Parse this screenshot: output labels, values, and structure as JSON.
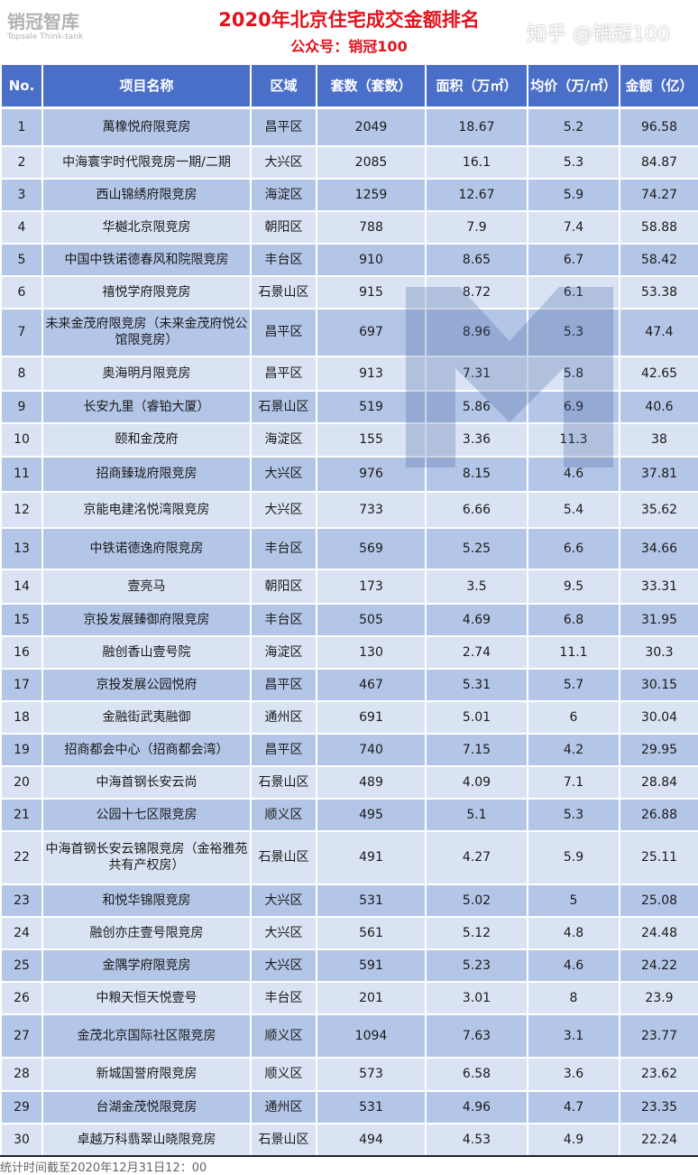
{
  "title": "2020年北京住宅成交金额排名",
  "subtitle": "公众号：销冠100",
  "columns": [
    "No.",
    "项目名称",
    "区域",
    "套数（套数）",
    "面积（万㎡）",
    "均价（万/㎡）",
    "金额（亿）"
  ],
  "rows": [
    [
      "1",
      "萬橡悦府限竞房",
      "昌平区",
      "2049",
      "18.67",
      "5.2",
      "96.58"
    ],
    [
      "2",
      "中海寰宇时代限竞房一期/二期",
      "大兴区",
      "2085",
      "16.1",
      "5.3",
      "84.87"
    ],
    [
      "3",
      "西山锦绣府限竞房",
      "海淀区",
      "1259",
      "12.67",
      "5.9",
      "74.27"
    ],
    [
      "4",
      "华樾北京限竞房",
      "朝阳区",
      "788",
      "7.9",
      "7.4",
      "58.88"
    ],
    [
      "5",
      "中国中铁诺德春风和院限竞房",
      "丰台区",
      "910",
      "8.65",
      "6.7",
      "58.42"
    ],
    [
      "6",
      "禧悦学府限竞房",
      "石景山区",
      "915",
      "8.72",
      "6.1",
      "53.38"
    ],
    [
      "7",
      "未来金茂府限竞房（未来金茂府悦公馆限竞房）",
      "昌平区",
      "697",
      "8.96",
      "5.3",
      "47.4"
    ],
    [
      "8",
      "奥海明月限竞房",
      "昌平区",
      "913",
      "7.31",
      "5.8",
      "42.65"
    ],
    [
      "9",
      "长安九里（睿铂大厦）",
      "石景山区",
      "519",
      "5.86",
      "6.9",
      "40.6"
    ],
    [
      "10",
      "颐和金茂府",
      "海淀区",
      "155",
      "3.36",
      "11.3",
      "38"
    ],
    [
      "11",
      "招商臻珑府限竞房",
      "大兴区",
      "976",
      "8.15",
      "4.6",
      "37.81"
    ],
    [
      "12",
      "京能电建洺悦湾限竞房",
      "大兴区",
      "733",
      "6.66",
      "5.4",
      "35.62"
    ],
    [
      "13",
      "中铁诺德逸府限竞房",
      "丰台区",
      "569",
      "5.25",
      "6.6",
      "34.66"
    ],
    [
      "14",
      "壹亮马",
      "朝阳区",
      "173",
      "3.5",
      "9.5",
      "33.31"
    ],
    [
      "15",
      "京投发展臻御府限竞房",
      "丰台区",
      "505",
      "4.69",
      "6.8",
      "31.95"
    ],
    [
      "16",
      "融创香山壹号院",
      "海淀区",
      "130",
      "2.74",
      "11.1",
      "30.3"
    ],
    [
      "17",
      "京投发展公园悦府",
      "昌平区",
      "467",
      "5.31",
      "5.7",
      "30.15"
    ],
    [
      "18",
      "金融街武夷融御",
      "通州区",
      "691",
      "5.01",
      "6",
      "30.04"
    ],
    [
      "19",
      "招商都会中心（招商都会湾）",
      "昌平区",
      "740",
      "7.15",
      "4.2",
      "29.95"
    ],
    [
      "20",
      "中海首钢长安云尚",
      "石景山区",
      "489",
      "4.09",
      "7.1",
      "28.84"
    ],
    [
      "21",
      "公园十七区限竞房",
      "顺义区",
      "495",
      "5.1",
      "5.3",
      "26.88"
    ],
    [
      "22",
      "中海首钢长安云锦限竞房（金裕雅苑共有产权房）",
      "石景山区",
      "491",
      "4.27",
      "5.9",
      "25.11"
    ],
    [
      "23",
      "和悦华锦限竞房",
      "大兴区",
      "531",
      "5.02",
      "5",
      "25.08"
    ],
    [
      "24",
      "融创亦庄壹号限竞房",
      "大兴区",
      "561",
      "5.12",
      "4.8",
      "24.48"
    ],
    [
      "25",
      "金隅学府限竞房",
      "大兴区",
      "591",
      "5.23",
      "4.6",
      "24.22"
    ],
    [
      "26",
      "中粮天恒天悦壹号",
      "丰台区",
      "201",
      "3.01",
      "8",
      "23.9"
    ],
    [
      "27",
      "金茂北京国际社区限竞房",
      "顺义区",
      "1094",
      "7.63",
      "3.1",
      "23.77"
    ],
    [
      "28",
      "新城国誉府限竞房",
      "顺义区",
      "573",
      "6.58",
      "3.6",
      "23.62"
    ],
    [
      "29",
      "台湖金茂悦限竞房",
      "通州区",
      "531",
      "4.96",
      "4.7",
      "23.35"
    ],
    [
      "30",
      "卓越万科翡翠山晓限竞房",
      "石景山区",
      "494",
      "4.53",
      "4.9",
      "22.24"
    ]
  ],
  "footer": "统计时间截至2020年12月31日12：00",
  "watermark": {
    "logo_text": "销冠智库",
    "logo_sub": "Topsale Think-tank",
    "zhihu": "知乎 @销冠100"
  },
  "colors": {
    "title": "#e0141e",
    "header_bg": "#4a6fc9",
    "row_dark": "#b4c6e7",
    "row_light": "#dae3f3"
  }
}
